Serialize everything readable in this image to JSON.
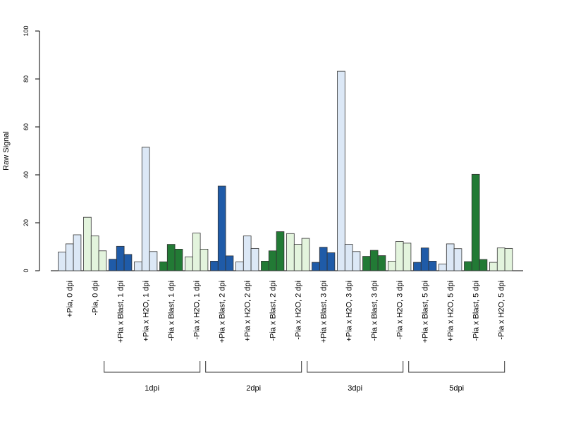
{
  "chart_data": {
    "type": "bar",
    "ylabel": "Raw Signal",
    "xlabel": "",
    "ylim": [
      0,
      100
    ],
    "yticks": [
      0,
      20,
      40,
      60,
      80,
      100
    ],
    "grid": false,
    "legend": "none",
    "categories": [
      "+Pia, 0 dpi",
      "-Pia, 0 dpi",
      "+Pia x Blast, 1 dpi",
      "+Pia x H2O, 1 dpi",
      "-Pia x Blast, 1 dpi",
      "-Pia x H2O, 1 dpi",
      "+Pia x Blast, 2 dpi",
      "+Pia x H2O, 2 dpi",
      "-Pia x Blast, 2 dpi",
      "-Pia x H2O, 2 dpi",
      "+Pia x Blast, 3 dpi",
      "+Pia x H2O, 3 dpi",
      "-Pia x Blast, 3 dpi",
      "-Pia x H2O, 3 dpi",
      "+Pia x Blast, 5 dpi",
      "+Pia x H2O, 5 dpi",
      "-Pia x Blast, 5 dpi",
      "-Pia x H2O, 5 dpi"
    ],
    "category_colors": [
      "#dce8f6",
      "#e3f4dd",
      "#1f5ba8",
      "#dce8f6",
      "#227a35",
      "#e3f4dd",
      "#1f5ba8",
      "#dce8f6",
      "#227a35",
      "#e3f4dd",
      "#1f5ba8",
      "#dce8f6",
      "#227a35",
      "#e3f4dd",
      "#1f5ba8",
      "#dce8f6",
      "#227a35",
      "#e3f4dd"
    ],
    "values": [
      [
        7.8,
        11.2,
        15.0
      ],
      [
        22.3,
        14.5,
        8.3
      ],
      [
        4.8,
        10.2,
        6.8
      ],
      [
        3.7,
        51.5,
        8.0
      ],
      [
        3.7,
        11.0,
        9.0
      ],
      [
        5.8,
        15.7,
        9.0
      ],
      [
        4.0,
        35.3,
        6.2
      ],
      [
        3.7,
        14.5,
        9.3
      ],
      [
        4.0,
        8.3,
        16.3
      ],
      [
        15.5,
        11.0,
        13.5
      ],
      [
        3.5,
        9.8,
        7.5
      ],
      [
        83.2,
        11.0,
        8.0
      ],
      [
        6.0,
        8.5,
        6.3
      ],
      [
        4.0,
        12.2,
        11.5
      ],
      [
        3.5,
        9.5,
        4.0
      ],
      [
        2.8,
        11.2,
        9.2
      ],
      [
        3.8,
        40.2,
        4.7
      ],
      [
        3.5,
        9.5,
        9.3
      ]
    ],
    "groups": [
      {
        "label": "1dpi",
        "from": 2,
        "to": 5
      },
      {
        "label": "2dpi",
        "from": 6,
        "to": 9
      },
      {
        "label": "3dpi",
        "from": 10,
        "to": 13
      },
      {
        "label": "5dpi",
        "from": 14,
        "to": 17
      }
    ]
  }
}
